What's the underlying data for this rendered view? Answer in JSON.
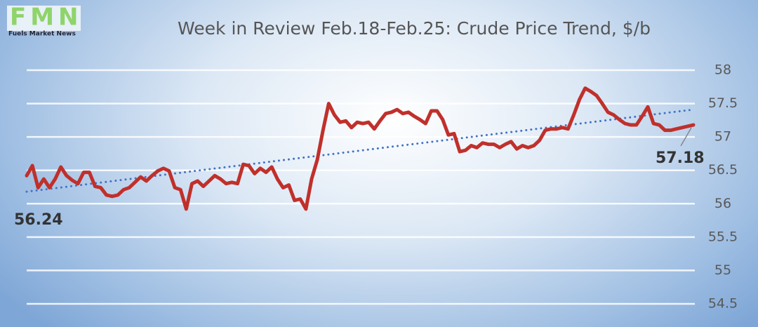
{
  "logo": {
    "letters": "FMN",
    "name": "Fuels Market News"
  },
  "chart_data": {
    "type": "line",
    "title": "Week in Review Feb.18-Feb.25: Crude Price Trend, $/b",
    "series": [
      {
        "color": "#c0302b",
        "values": [
          56.42,
          56.57,
          56.24,
          56.37,
          56.24,
          56.37,
          56.55,
          56.42,
          56.35,
          56.3,
          56.47,
          56.47,
          56.26,
          56.24,
          56.13,
          56.11,
          56.13,
          56.21,
          56.24,
          56.32,
          56.4,
          56.34,
          56.42,
          56.49,
          56.53,
          56.49,
          56.24,
          56.21,
          55.92,
          56.3,
          56.34,
          56.26,
          56.34,
          56.42,
          56.37,
          56.3,
          56.32,
          56.3,
          56.59,
          56.57,
          56.45,
          56.53,
          56.47,
          56.55,
          56.37,
          56.24,
          56.28,
          56.05,
          56.07,
          55.92,
          56.37,
          56.66,
          57.1,
          57.5,
          57.33,
          57.22,
          57.24,
          57.14,
          57.22,
          57.2,
          57.22,
          57.12,
          57.24,
          57.35,
          57.37,
          57.41,
          57.35,
          57.37,
          57.31,
          57.26,
          57.2,
          57.39,
          57.39,
          57.26,
          57.03,
          57.05,
          56.78,
          56.8,
          56.87,
          56.84,
          56.91,
          56.89,
          56.89,
          56.84,
          56.89,
          56.93,
          56.82,
          56.87,
          56.84,
          56.87,
          56.95,
          57.1,
          57.12,
          57.12,
          57.14,
          57.12,
          57.33,
          57.56,
          57.73,
          57.68,
          57.62,
          57.5,
          57.37,
          57.33,
          57.26,
          57.2,
          57.18,
          57.18,
          57.31,
          57.45,
          57.2,
          57.18,
          57.1,
          57.1,
          57.12,
          57.14,
          57.16,
          57.18
        ]
      }
    ],
    "trendline": {
      "color": "#4472c4",
      "values": [
        56.18,
        57.41
      ]
    },
    "annotations": [
      "56.24",
      "57.18"
    ],
    "ylim": [
      54.5,
      58
    ],
    "yticks": [
      54.5,
      55,
      55.5,
      56,
      56.5,
      57,
      57.5,
      58
    ],
    "grid": true
  }
}
